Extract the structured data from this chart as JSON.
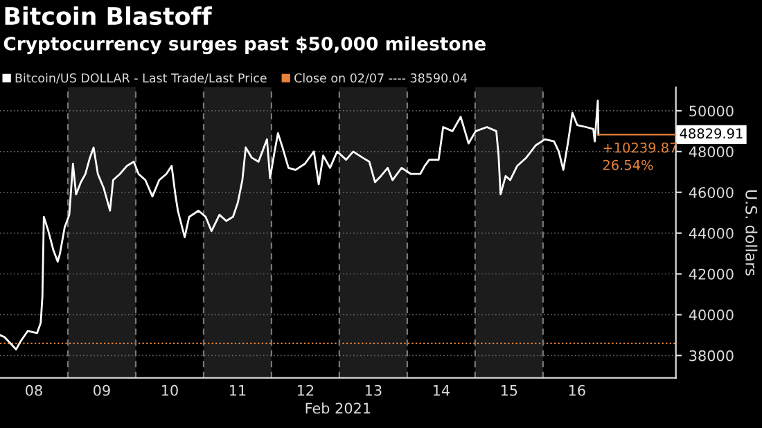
{
  "chart_data": {
    "type": "line",
    "title": "Bitcoin Blastoff",
    "subtitle": "Cryptocurrency surges past $50,000 milestone",
    "xlabel": "Feb 2021",
    "ylabel": "U.S. dollars",
    "x": [
      "2021-02-08T00:00",
      "2021-02-08T01:36",
      "2021-02-08T05:42",
      "2021-02-08T07:18",
      "2021-02-08T09:48",
      "2021-02-08T13:06",
      "2021-02-08T14:24",
      "2021-02-08T15:00",
      "2021-02-08T15:30",
      "2021-02-08T17:06",
      "2021-02-08T18:48",
      "2021-02-08T20:24",
      "2021-02-08T21:12",
      "2021-02-08T22:54",
      "2021-02-09T00:30",
      "2021-02-09T01:48",
      "2021-02-09T02:54",
      "2021-02-09T04:36",
      "2021-02-09T06:12",
      "2021-02-09T07:48",
      "2021-02-09T09:06",
      "2021-02-09T10:36",
      "2021-02-09T12:42",
      "2021-02-09T14:54",
      "2021-02-09T16:00",
      "2021-02-09T18:24",
      "2021-02-09T20:54",
      "2021-02-09T23:18",
      "2021-02-10T01:00",
      "2021-02-10T03:24",
      "2021-02-10T05:54",
      "2021-02-10T08:18",
      "2021-02-10T10:48",
      "2021-02-10T12:42",
      "2021-02-10T14:00",
      "2021-02-10T14:54",
      "2021-02-10T17:18",
      "2021-02-10T18:54",
      "2021-02-10T22:12",
      "2021-02-11T00:42",
      "2021-02-11T02:48",
      "2021-02-11T05:36",
      "2021-02-11T08:00",
      "2021-02-11T10:24",
      "2021-02-11T12:06",
      "2021-02-11T13:42",
      "2021-02-11T14:54",
      "2021-02-11T17:00",
      "2021-02-11T19:24",
      "2021-02-11T22:24",
      "2021-02-11T23:30",
      "2021-02-12T01:06",
      "2021-02-12T02:18",
      "2021-02-12T03:54",
      "2021-02-12T06:00",
      "2021-02-12T08:30",
      "2021-02-12T11:48",
      "2021-02-12T15:00",
      "2021-02-12T16:42",
      "2021-02-12T18:18",
      "2021-02-12T20:42",
      "2021-02-12T23:12",
      "2021-02-13T02:24",
      "2021-02-13T04:54",
      "2021-02-13T08:12",
      "2021-02-13T10:36",
      "2021-02-13T12:36",
      "2021-02-13T14:42",
      "2021-02-13T17:06",
      "2021-02-13T18:48",
      "2021-02-13T22:00",
      "2021-02-14T01:18",
      "2021-02-14T04:36",
      "2021-02-14T06:12",
      "2021-02-14T07:48",
      "2021-02-14T11:06",
      "2021-02-14T12:42",
      "2021-02-14T16:00",
      "2021-02-14T18:54",
      "2021-02-14T21:42",
      "2021-02-15T00:12",
      "2021-02-15T04:12",
      "2021-02-15T07:30",
      "2021-02-15T08:18",
      "2021-02-15T09:00",
      "2021-02-15T10:48",
      "2021-02-15T12:24",
      "2021-02-15T14:54",
      "2021-02-15T18:06",
      "2021-02-15T21:24",
      "2021-02-16T00:42",
      "2021-02-16T03:54",
      "2021-02-16T05:36",
      "2021-02-16T07:12",
      "2021-02-16T08:48",
      "2021-02-16T10:24",
      "2021-02-16T12:06",
      "2021-02-16T15:18",
      "2021-02-16T17:48",
      "2021-02-16T18:18",
      "2021-02-16T19:24",
      "2021-02-16T19:36"
    ],
    "series": [
      {
        "name": "Bitcoin/US DOLLAR - Last Trade/Last Price",
        "color": "#ffffff",
        "values": [
          39000,
          38900,
          38300,
          38700,
          39200,
          39100,
          39600,
          40900,
          44800,
          44100,
          43200,
          42600,
          43000,
          44300,
          44900,
          47400,
          45900,
          46500,
          46900,
          47700,
          48200,
          46900,
          46200,
          45100,
          46600,
          46900,
          47300,
          47500,
          46900,
          46600,
          45800,
          46600,
          46900,
          47300,
          45900,
          45100,
          43800,
          44800,
          45100,
          44800,
          44100,
          44900,
          44600,
          44800,
          45500,
          46600,
          48200,
          47700,
          47500,
          48600,
          46700,
          48000,
          48900,
          48200,
          47200,
          47100,
          47400,
          48000,
          46400,
          47800,
          47200,
          48000,
          47600,
          48000,
          47700,
          47500,
          46500,
          46800,
          47200,
          46600,
          47200,
          46900,
          46900,
          47300,
          47600,
          47600,
          49200,
          49000,
          49700,
          48400,
          49000,
          49200,
          49000,
          47800,
          45900,
          46800,
          46600,
          47300,
          47700,
          48300,
          48600,
          48500,
          48000,
          47100,
          48400,
          49900,
          49300,
          49200,
          49100,
          48500,
          50500,
          48829.91
        ]
      }
    ],
    "xlim": [
      "2021-02-08T00:00",
      "2021-02-17T23:00"
    ],
    "xticks": [
      {
        "value": "2021-02-08T12:00",
        "label": "08"
      },
      {
        "value": "2021-02-09T12:00",
        "label": "09"
      },
      {
        "value": "2021-02-10T12:00",
        "label": "10"
      },
      {
        "value": "2021-02-11T12:00",
        "label": "11"
      },
      {
        "value": "2021-02-12T12:00",
        "label": "12"
      },
      {
        "value": "2021-02-13T12:00",
        "label": "13"
      },
      {
        "value": "2021-02-14T12:00",
        "label": "14"
      },
      {
        "value": "2021-02-15T12:00",
        "label": "15"
      },
      {
        "value": "2021-02-16T12:00",
        "label": "16"
      }
    ],
    "ylim": [
      36900,
      51150
    ],
    "yticks": [
      38000,
      40000,
      42000,
      44000,
      46000,
      48000,
      50000
    ],
    "grid": "y",
    "legend": "top left",
    "marker": "none",
    "line_style": "solid",
    "ref_lines": [
      {
        "axis": "y",
        "value": 38590.04,
        "label": "Close on 02/07 ---- 38590.04",
        "color": "#e8823a",
        "line_style": "dotted"
      },
      {
        "axis": "x",
        "value": "2021-02-09T00:00",
        "color": "#777777",
        "line_style": "dashed"
      },
      {
        "axis": "x",
        "value": "2021-02-10T00:00",
        "color": "#777777",
        "line_style": "dashed"
      },
      {
        "axis": "x",
        "value": "2021-02-11T00:00",
        "color": "#777777",
        "line_style": "dashed"
      },
      {
        "axis": "x",
        "value": "2021-02-12T00:00",
        "color": "#777777",
        "line_style": "dashed"
      },
      {
        "axis": "x",
        "value": "2021-02-13T00:00",
        "color": "#777777",
        "line_style": "dashed"
      },
      {
        "axis": "x",
        "value": "2021-02-14T00:00",
        "color": "#777777",
        "line_style": "dashed"
      },
      {
        "axis": "x",
        "value": "2021-02-15T00:00",
        "color": "#777777",
        "line_style": "dashed"
      },
      {
        "axis": "x",
        "value": "2021-02-16T00:00",
        "color": "#777777",
        "line_style": "dashed"
      }
    ],
    "bands": [
      {
        "axis": "x",
        "from": "2021-02-09T00:00",
        "to": "2021-02-10T00:00",
        "color": "#1c1c1c"
      },
      {
        "axis": "x",
        "from": "2021-02-11T00:00",
        "to": "2021-02-12T00:00",
        "color": "#1c1c1c"
      },
      {
        "axis": "x",
        "from": "2021-02-13T00:00",
        "to": "2021-02-14T00:00",
        "color": "#1c1c1c"
      },
      {
        "axis": "x",
        "from": "2021-02-15T00:00",
        "to": "2021-02-16T00:00",
        "color": "#1c1c1c"
      }
    ],
    "annotations": [
      {
        "text": "48829.91",
        "x": "2021-02-16T19:36",
        "y": 48829.91
      },
      {
        "text": "+10239.87",
        "x": "2021-02-16T19:36",
        "y": 48829.91
      },
      {
        "text": "26.54%",
        "x": "2021-02-16T19:36",
        "y": 48829.91
      }
    ]
  }
}
